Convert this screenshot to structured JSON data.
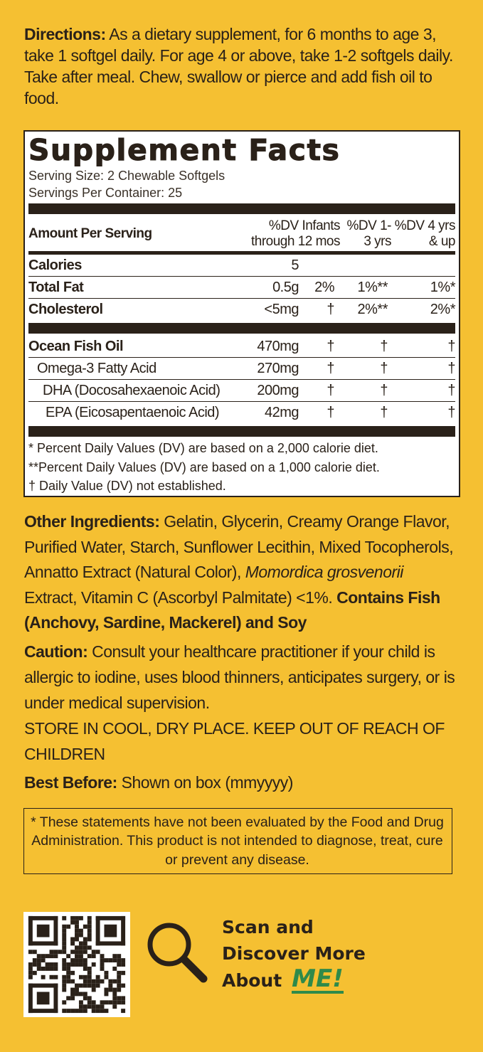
{
  "directions": {
    "label": "Directions:",
    "text": " As a dietary supplement, for 6 months to age 3, take 1 softgel daily. For age 4 or above, take 1-2 softgels daily. Take after meal. Chew, swallow or pierce and add fish oil to food."
  },
  "facts": {
    "title": "Supplement Facts",
    "serving_size": "Serving Size:  2 Chewable Softgels",
    "servings_per_container": "Servings Per Container: 25",
    "header": {
      "amount": "Amount Per Serving",
      "dv_infants": "%DV Infants through 12 mos",
      "dv_1_3": "%DV 1-3 yrs",
      "dv_4up": "%DV 4 yrs & up"
    },
    "rows_a": [
      {
        "name": "Calories",
        "amount": "5",
        "dv1": "",
        "dv2": "",
        "dv3": ""
      },
      {
        "name": "Total Fat",
        "amount": "0.5g",
        "dv1": "2%",
        "dv2": "1%**",
        "dv3": "1%*"
      },
      {
        "name": "Cholesterol",
        "amount": "<5mg",
        "dv1": "†",
        "dv2": "2%**",
        "dv3": "2%*"
      }
    ],
    "rows_b": [
      {
        "name": "Ocean Fish Oil",
        "amount": "470mg",
        "dv1": "†",
        "dv2": "†",
        "dv3": "†"
      },
      {
        "name": "Omega-3 Fatty Acid",
        "amount": "270mg",
        "dv1": "†",
        "dv2": "†",
        "dv3": "†"
      },
      {
        "name": "DHA (Docosahexaenoic Acid)",
        "amount": "200mg",
        "dv1": "†",
        "dv2": "†",
        "dv3": "†"
      },
      {
        "name": "EPA (Eicosapentaenoic Acid)",
        "amount": "42mg",
        "dv1": "†",
        "dv2": "†",
        "dv3": "†"
      }
    ],
    "footnotes": [
      "* Percent Daily Values (DV) are based on a 2,000 calorie diet.",
      "**Percent Daily Values (DV) are based on a 1,000 calorie diet.",
      "† Daily Value (DV) not established."
    ]
  },
  "other": {
    "label": "Other Ingredients:",
    "text1": " Gelatin, Glycerin, Creamy Orange Flavor, Purified Water, Starch, Sunflower Lecithin, Mixed Tocopherols, Annatto Extract (Natural Color), ",
    "italic": "Momordica grosvenorii",
    "text2": " Extract, Vitamin C (Ascorbyl Palmitate) <1%. ",
    "contains": "Contains Fish (Anchovy, Sardine, Mackerel) and Soy"
  },
  "caution": {
    "label": "Caution:",
    "text": "  Consult your healthcare practitioner if your child is allergic to iodine, uses blood thinners, anticipates surgery, or is under medical supervision.",
    "storage": "STORE IN COOL, DRY PLACE. KEEP OUT OF REACH OF CHILDREN",
    "best_label": "Best Before:",
    "best_text": "  Shown on box (mmyyyy)"
  },
  "disclaimer": "* These statements have not been evaluated by the Food and Drug Administration. This product is not intended to diagnose, treat, cure or prevent any disease.",
  "scan": {
    "line1": "Scan and",
    "line2": "Discover More",
    "line3": "About",
    "me": "ME!"
  },
  "colors": {
    "background": "#f5c032",
    "text": "#2a2119",
    "me_green": "#2f8a4a"
  }
}
